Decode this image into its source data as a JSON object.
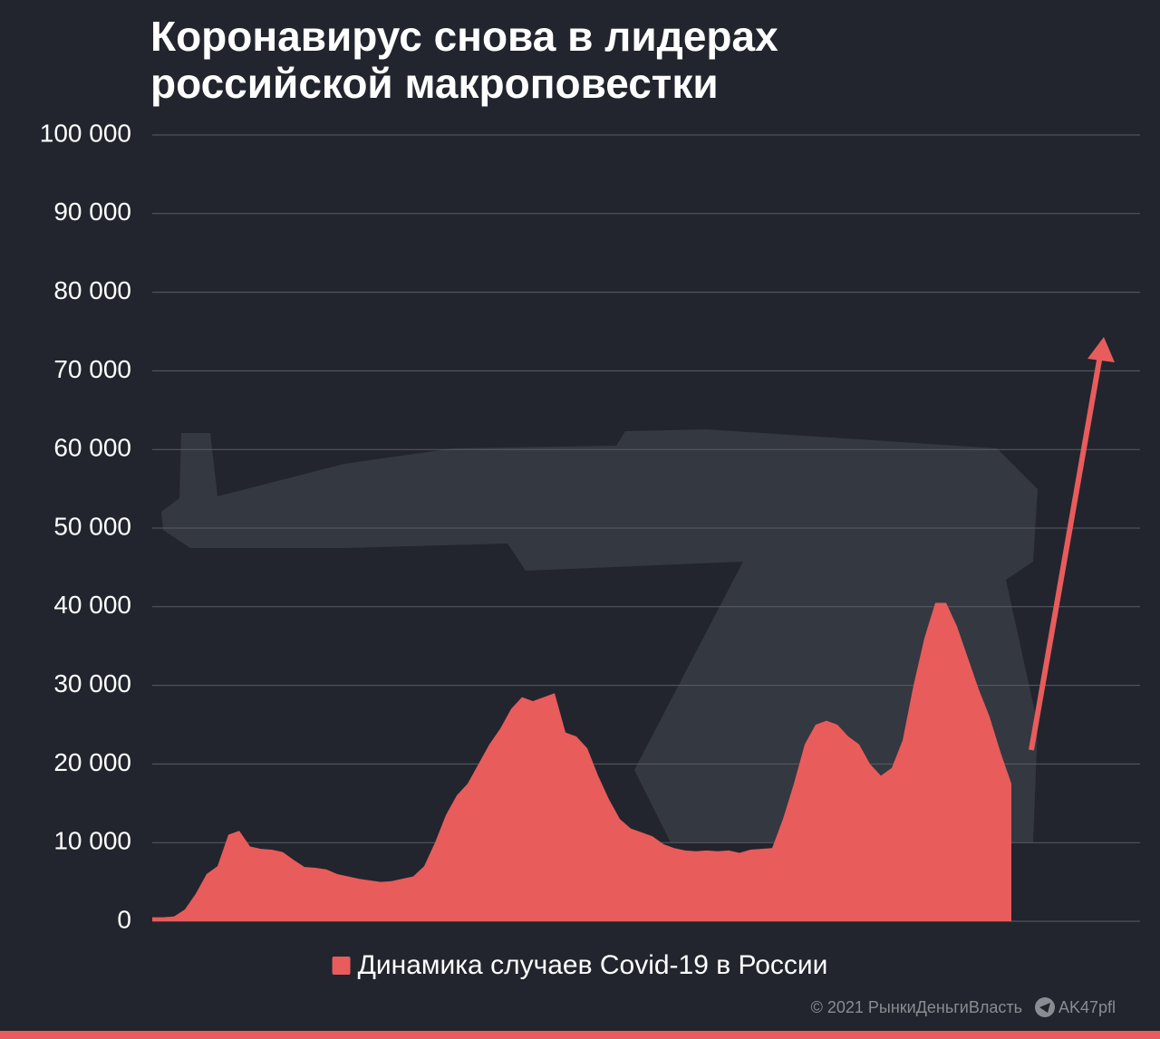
{
  "chart_data": {
    "type": "area",
    "title": "Коронавирус снова в лидерах российской макроповестки",
    "legend": "Динамика случаев Covid-19 в России",
    "footer": "© 2021  РынкиДеньгиВласть",
    "footer_handle": "AK47pfl",
    "color": "#e85c5c",
    "grid": true,
    "ylim": [
      0,
      100000
    ],
    "yticks": [
      {
        "value": 0,
        "label": "0"
      },
      {
        "value": 10000,
        "label": "10 000"
      },
      {
        "value": 20000,
        "label": "20 000"
      },
      {
        "value": 30000,
        "label": "30 000"
      },
      {
        "value": 40000,
        "label": "40 000"
      },
      {
        "value": 50000,
        "label": "50 000"
      },
      {
        "value": 60000,
        "label": "60 000"
      },
      {
        "value": 70000,
        "label": "70 000"
      },
      {
        "value": 80000,
        "label": "80 000"
      },
      {
        "value": 90000,
        "label": "90 000"
      },
      {
        "value": 100000,
        "label": "100 000"
      }
    ],
    "categories": [
      null,
      null,
      null,
      null,
      null,
      null,
      null,
      null,
      null,
      null,
      null,
      null,
      null,
      null,
      null,
      null,
      null,
      null,
      null,
      null,
      null,
      null,
      null,
      null,
      null,
      null,
      null,
      null,
      null,
      null,
      null,
      null,
      null,
      null,
      null,
      null,
      null,
      null,
      null,
      null,
      null,
      null,
      null,
      null,
      null,
      null,
      null,
      null,
      null,
      null,
      null,
      null,
      null,
      null,
      null,
      null,
      null,
      null,
      null,
      null,
      null,
      null,
      null,
      null,
      null,
      null,
      null,
      null,
      null,
      null,
      null,
      null,
      null,
      null,
      null,
      null,
      null,
      null,
      null,
      null
    ],
    "values": [
      500,
      500,
      600,
      1500,
      3500,
      6000,
      7000,
      11000,
      11500,
      9500,
      9200,
      9100,
      8800,
      7800,
      6900,
      6800,
      6600,
      6000,
      5700,
      5400,
      5200,
      5000,
      5100,
      5400,
      5700,
      7000,
      10000,
      13500,
      16000,
      17500,
      20000,
      22500,
      24500,
      27000,
      28500,
      28000,
      28500,
      29000,
      24000,
      23500,
      22000,
      18500,
      15500,
      13000,
      11800,
      11300,
      10800,
      9800,
      9300,
      9000,
      8900,
      9000,
      8900,
      9000,
      8700,
      9100,
      9200,
      9300,
      13000,
      17500,
      22500,
      25000,
      25500,
      25000,
      23500,
      22500,
      20000,
      18500,
      19500,
      23000,
      30000,
      36000,
      40500,
      40500,
      37500,
      33500,
      29500,
      26000,
      21500,
      17500
    ]
  }
}
